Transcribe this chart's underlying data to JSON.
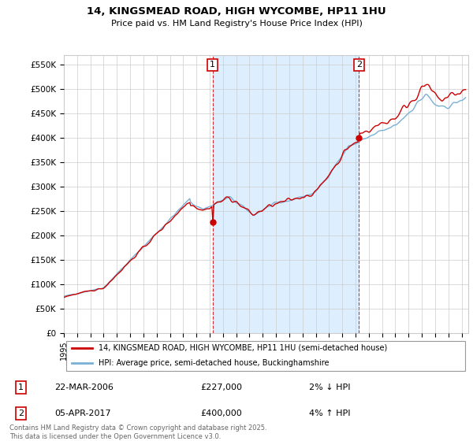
{
  "title_line1": "14, KINGSMEAD ROAD, HIGH WYCOMBE, HP11 1HU",
  "title_line2": "Price paid vs. HM Land Registry's House Price Index (HPI)",
  "ylabel_ticks": [
    "£0",
    "£50K",
    "£100K",
    "£150K",
    "£200K",
    "£250K",
    "£300K",
    "£350K",
    "£400K",
    "£450K",
    "£500K",
    "£550K"
  ],
  "ytick_values": [
    0,
    50000,
    100000,
    150000,
    200000,
    250000,
    300000,
    350000,
    400000,
    450000,
    500000,
    550000
  ],
  "ylim": [
    0,
    570000
  ],
  "xlim_start": 1995.0,
  "xlim_end": 2025.5,
  "hpi_color": "#7ab0d4",
  "price_color": "#cc0000",
  "shade_color": "#ddeeff",
  "transaction1_x": 2006.22,
  "transaction1_y": 227000,
  "transaction2_x": 2017.26,
  "transaction2_y": 400000,
  "legend_label1": "14, KINGSMEAD ROAD, HIGH WYCOMBE, HP11 1HU (semi-detached house)",
  "legend_label2": "HPI: Average price, semi-detached house, Buckinghamshire",
  "annotation1_label": "1",
  "annotation2_label": "2",
  "table_row1": [
    "1",
    "22-MAR-2006",
    "£227,000",
    "2% ↓ HPI"
  ],
  "table_row2": [
    "2",
    "05-APR-2017",
    "£400,000",
    "4% ↑ HPI"
  ],
  "footnote": "Contains HM Land Registry data © Crown copyright and database right 2025.\nThis data is licensed under the Open Government Licence v3.0.",
  "background_color": "#ffffff",
  "grid_color": "#cccccc"
}
